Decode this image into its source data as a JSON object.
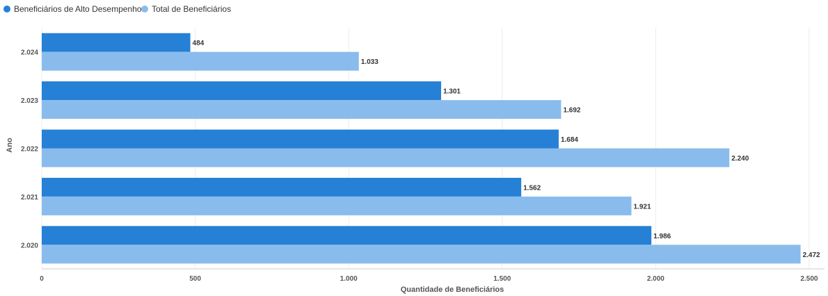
{
  "chart_data": {
    "type": "bar",
    "orientation": "horizontal",
    "categories": [
      "2.024",
      "2.023",
      "2.022",
      "2.021",
      "2.020"
    ],
    "series": [
      {
        "name": "Beneficiários de Alto Desempenho",
        "color": "#2580d6",
        "values": [
          484,
          1301,
          1684,
          1562,
          1986
        ],
        "labels": [
          "484",
          "1.301",
          "1.684",
          "1.562",
          "1.986"
        ]
      },
      {
        "name": "Total de Beneficiários",
        "color": "#89bcec",
        "values": [
          1033,
          1692,
          2240,
          1921,
          2472
        ],
        "labels": [
          "1.033",
          "1.692",
          "2.240",
          "1.921",
          "2.472"
        ]
      }
    ],
    "xlabel": "Quantidade de Beneficiários",
    "ylabel": "Ano",
    "xlim": [
      0,
      2550
    ],
    "xticks": [
      0,
      500,
      1000,
      1500,
      2000,
      2500
    ],
    "xtick_labels": [
      "0",
      "500",
      "1.000",
      "1.500",
      "2.000",
      "2.500"
    ],
    "grid": true,
    "legend_position": "top-left"
  }
}
